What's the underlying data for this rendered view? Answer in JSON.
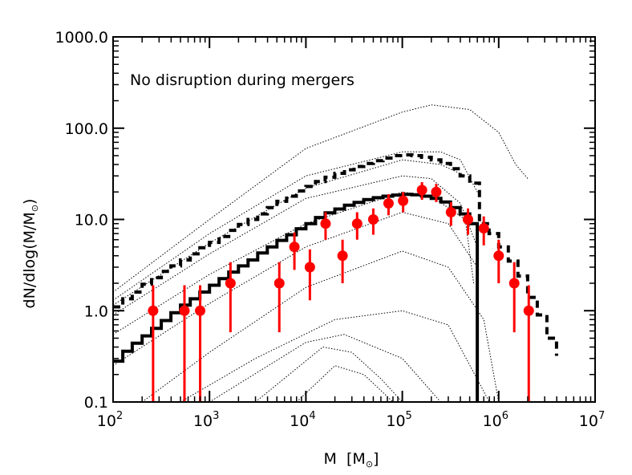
{
  "chart_data": {
    "type": "line",
    "annotation": "No disruption during mergers",
    "xlabel": {
      "main": "M",
      "unit_main": "M",
      "unit_sub": "⊙"
    },
    "ylabel": {
      "prefix": "dN/dlog(M/M",
      "sub": "⊙",
      "suffix": ")"
    },
    "xscale": "log",
    "yscale": "log",
    "xlim": [
      100,
      10000000
    ],
    "ylim": [
      0.1,
      1000
    ],
    "x_ticks": [
      {
        "value": 100,
        "base": "10",
        "exp": "2"
      },
      {
        "value": 1000,
        "base": "10",
        "exp": "3"
      },
      {
        "value": 10000,
        "base": "10",
        "exp": "4"
      },
      {
        "value": 100000,
        "base": "10",
        "exp": "5"
      },
      {
        "value": 1000000,
        "base": "10",
        "exp": "6"
      },
      {
        "value": 10000000,
        "base": "10",
        "exp": "7"
      }
    ],
    "y_ticks": [
      {
        "value": 0.1,
        "label": "0.1"
      },
      {
        "value": 1,
        "label": "1.0"
      },
      {
        "value": 10,
        "label": "10.0"
      },
      {
        "value": 100,
        "label": "100.0"
      },
      {
        "value": 1000,
        "label": "1000.0"
      }
    ],
    "colors": {
      "observed": "#ff0000",
      "model": "#000000",
      "components": "#000000"
    },
    "series": [
      {
        "name": "model-solid",
        "style": "solid-step",
        "bin_edges": [
          100,
          126,
          158,
          200,
          251,
          316,
          398,
          501,
          631,
          794,
          1000,
          1259,
          1585,
          1995,
          2512,
          3162,
          3981,
          5012,
          6310,
          7943,
          10000,
          12589,
          15849,
          19953,
          25119,
          31623,
          39811,
          50119,
          63096,
          79433,
          100000,
          125893,
          158489,
          199526,
          251189,
          316228,
          398107,
          501187,
          600000
        ],
        "values": [
          0.28,
          0.36,
          0.44,
          0.53,
          0.64,
          0.78,
          0.95,
          1.15,
          1.35,
          1.6,
          1.9,
          2.25,
          2.65,
          3.1,
          3.6,
          4.3,
          5.0,
          5.9,
          6.8,
          7.9,
          9.0,
          10.5,
          11.8,
          13.0,
          14.3,
          15.4,
          16.5,
          17.3,
          18.0,
          18.5,
          18.8,
          18.6,
          18.0,
          17.0,
          15.5,
          13.5,
          11.5,
          9.0
        ],
        "drop_to": 0.1
      },
      {
        "name": "model-dashed",
        "style": "dashed-step",
        "bin_edges": [
          100,
          126,
          158,
          200,
          251,
          316,
          398,
          501,
          631,
          794,
          1000,
          1259,
          1585,
          1995,
          2512,
          3162,
          3981,
          5012,
          6310,
          7943,
          10000,
          12589,
          15849,
          19953,
          25119,
          31623,
          39811,
          50119,
          63096,
          79433,
          100000,
          125893,
          158489,
          199526,
          251189,
          316228,
          398107,
          501187,
          630957,
          794328,
          1000000,
          1258925,
          1584893,
          1995262,
          2511886,
          3162278,
          3981072
        ],
        "values": [
          1.1,
          1.35,
          1.6,
          1.95,
          2.3,
          2.7,
          3.1,
          3.6,
          4.2,
          4.9,
          5.6,
          6.5,
          7.6,
          8.8,
          10.0,
          11.5,
          13.5,
          15.8,
          18.0,
          20.5,
          23.0,
          26.0,
          29.0,
          32.0,
          35.0,
          38.0,
          41.0,
          44.0,
          47.0,
          50.0,
          51.0,
          50.0,
          48.0,
          45.0,
          41.0,
          36.0,
          30.0,
          25.0,
          9.0,
          7.0,
          5.0,
          3.5,
          2.4,
          1.4,
          0.9,
          0.5,
          0.32
        ],
        "drop_to": 0.1
      }
    ],
    "points": [
      {
        "x": 260,
        "y": 1.0,
        "ylo": 0.1,
        "yhi": 1.9
      },
      {
        "x": 550,
        "y": 1.0,
        "ylo": 0.1,
        "yhi": 1.9
      },
      {
        "x": 800,
        "y": 1.0,
        "ylo": 0.1,
        "yhi": 1.9
      },
      {
        "x": 1650,
        "y": 2.0,
        "ylo": 0.58,
        "yhi": 3.4
      },
      {
        "x": 5300,
        "y": 2.0,
        "ylo": 0.58,
        "yhi": 3.4
      },
      {
        "x": 7600,
        "y": 5.0,
        "ylo": 2.8,
        "yhi": 7.2
      },
      {
        "x": 11000,
        "y": 3.0,
        "ylo": 1.3,
        "yhi": 4.7
      },
      {
        "x": 16000,
        "y": 9.0,
        "ylo": 6.0,
        "yhi": 12.0
      },
      {
        "x": 24000,
        "y": 4.0,
        "ylo": 2.0,
        "yhi": 6.0
      },
      {
        "x": 34000,
        "y": 9.0,
        "ylo": 6.0,
        "yhi": 12.0
      },
      {
        "x": 50000,
        "y": 10.0,
        "ylo": 6.8,
        "yhi": 13.2
      },
      {
        "x": 72000,
        "y": 15.0,
        "ylo": 11.1,
        "yhi": 18.9
      },
      {
        "x": 102000,
        "y": 16.0,
        "ylo": 12.0,
        "yhi": 20.0
      },
      {
        "x": 160000,
        "y": 21.0,
        "ylo": 16.4,
        "yhi": 25.6
      },
      {
        "x": 225000,
        "y": 20.0,
        "ylo": 15.5,
        "yhi": 24.5
      },
      {
        "x": 320000,
        "y": 12.0,
        "ylo": 8.5,
        "yhi": 15.5
      },
      {
        "x": 480000,
        "y": 10.0,
        "ylo": 6.8,
        "yhi": 13.2
      },
      {
        "x": 700000,
        "y": 8.0,
        "ylo": 5.2,
        "yhi": 10.8
      },
      {
        "x": 1000000,
        "y": 4.0,
        "ylo": 2.0,
        "yhi": 6.0
      },
      {
        "x": 1450000,
        "y": 2.0,
        "ylo": 0.58,
        "yhi": 3.4
      },
      {
        "x": 2050000,
        "y": 1.0,
        "ylo": 0.1,
        "yhi": 1.9
      }
    ],
    "component_curves": [
      {
        "name": "dotted-1",
        "points": [
          [
            100,
            1.6
          ],
          [
            1000,
            10
          ],
          [
            10000,
            60
          ],
          [
            100000,
            150
          ],
          [
            200000,
            180
          ],
          [
            500000,
            160
          ],
          [
            1000000,
            90
          ],
          [
            1500000,
            40
          ],
          [
            2000000,
            28
          ]
        ]
      },
      {
        "name": "dotted-2",
        "points": [
          [
            100,
            1.3
          ],
          [
            1000,
            7.0
          ],
          [
            10000,
            30
          ],
          [
            100000,
            55
          ],
          [
            250000,
            55
          ],
          [
            400000,
            45
          ],
          [
            600000,
            20
          ]
        ]
      },
      {
        "name": "dotted-3",
        "points": [
          [
            100,
            1.15
          ],
          [
            1000,
            5.5
          ],
          [
            10000,
            22
          ],
          [
            100000,
            45
          ],
          [
            250000,
            40
          ],
          [
            450000,
            30
          ]
        ]
      },
      {
        "name": "dotted-4",
        "points": [
          [
            100,
            0.9
          ],
          [
            1000,
            4.2
          ],
          [
            10000,
            17
          ],
          [
            100000,
            30
          ],
          [
            200000,
            28
          ],
          [
            400000,
            15
          ],
          [
            600000,
            5
          ]
        ]
      },
      {
        "name": "dotted-5",
        "points": [
          [
            100,
            0.55
          ],
          [
            1000,
            2.5
          ],
          [
            10000,
            9.0
          ],
          [
            100000,
            20
          ],
          [
            200000,
            18
          ],
          [
            450000,
            10
          ],
          [
            550000,
            2
          ]
        ]
      },
      {
        "name": "dotted-6",
        "points": [
          [
            100,
            0.25
          ],
          [
            1000,
            1.2
          ],
          [
            10000,
            5.0
          ],
          [
            100000,
            12
          ],
          [
            300000,
            9
          ],
          [
            600000,
            3
          ]
        ]
      },
      {
        "name": "dotted-7",
        "points": [
          [
            200,
            0.1
          ],
          [
            1000,
            0.35
          ],
          [
            10000,
            1.8
          ],
          [
            100000,
            4.5
          ],
          [
            300000,
            3.0
          ],
          [
            700000,
            0.8
          ],
          [
            1000000,
            0.1
          ]
        ]
      },
      {
        "name": "dotted-8",
        "points": [
          [
            500,
            0.1
          ],
          [
            3000,
            0.3
          ],
          [
            20000,
            0.8
          ],
          [
            100000,
            1.0
          ],
          [
            300000,
            0.7
          ],
          [
            800000,
            0.1
          ]
        ]
      },
      {
        "name": "dotted-9",
        "points": [
          [
            1000,
            0.1
          ],
          [
            10000,
            0.45
          ],
          [
            25000,
            0.55
          ],
          [
            100000,
            0.3
          ],
          [
            250000,
            0.1
          ]
        ]
      },
      {
        "name": "dotted-10",
        "points": [
          [
            3000,
            0.1
          ],
          [
            15000,
            0.4
          ],
          [
            30000,
            0.35
          ],
          [
            60000,
            0.18
          ],
          [
            100000,
            0.1
          ]
        ]
      },
      {
        "name": "dotted-11",
        "points": [
          [
            8000,
            0.1
          ],
          [
            20000,
            0.25
          ],
          [
            40000,
            0.2
          ],
          [
            80000,
            0.1
          ]
        ]
      }
    ]
  }
}
